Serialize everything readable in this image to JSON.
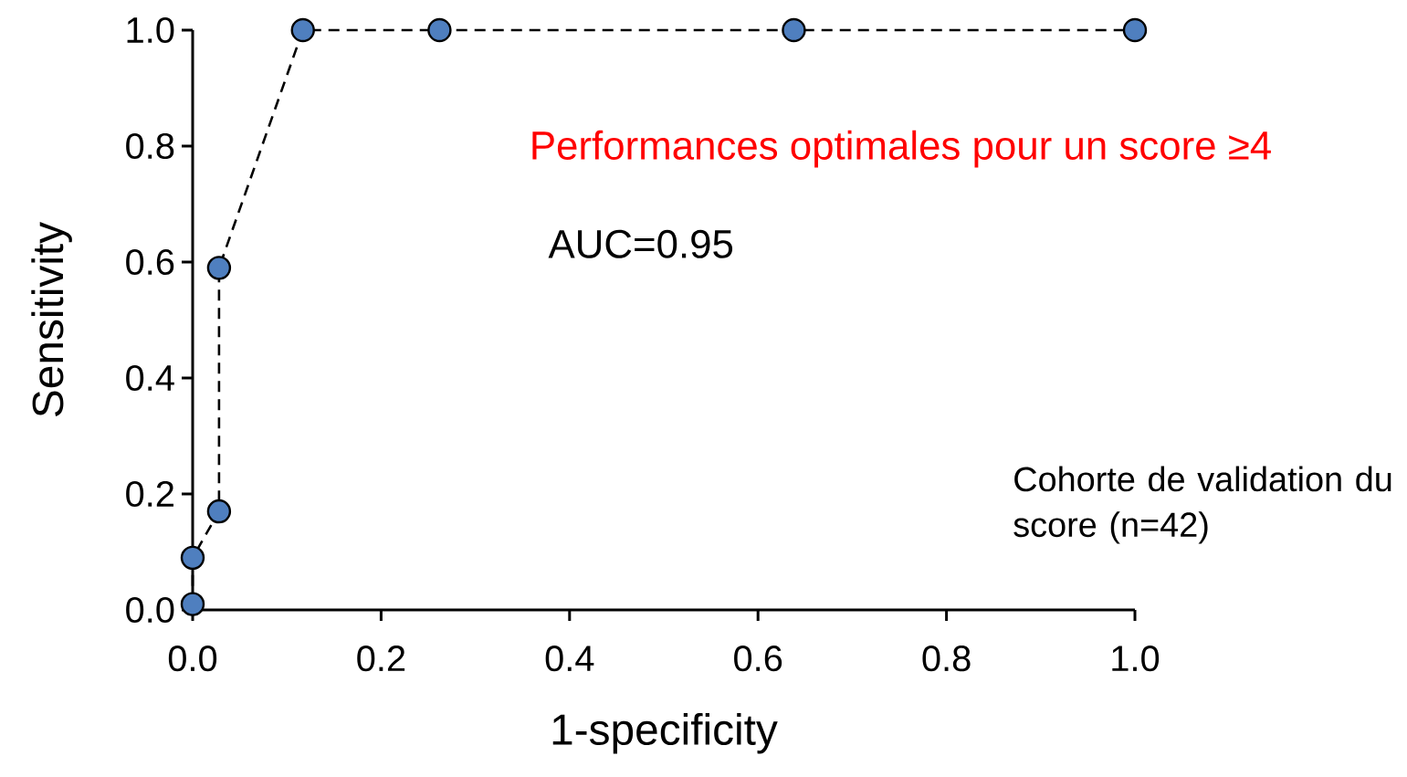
{
  "chart_data": {
    "type": "line",
    "xlabel": "1-specificity",
    "ylabel": "Sensitivity",
    "series": [
      {
        "color": "#4f7fbf",
        "x": [
          0.0,
          0.0,
          0.028,
          0.028,
          0.117,
          0.262,
          0.638,
          1.0
        ],
        "values": [
          0.01,
          0.09,
          0.17,
          0.59,
          1.0,
          1.0,
          1.0,
          1.0
        ]
      }
    ],
    "xlim": [
      0,
      1.0
    ],
    "ylim": [
      0,
      1.0
    ],
    "xticks": [
      {
        "value": 0,
        "label": "0.0"
      },
      0.2,
      0.4,
      0.6,
      0.8,
      {
        "value": 1,
        "label": "1.0"
      }
    ],
    "yticks": [
      {
        "value": 0,
        "label": "0.0"
      },
      0.2,
      0.4,
      0.6,
      0.8,
      {
        "value": 1,
        "label": "1.0"
      }
    ],
    "marker": "circle",
    "line_style": "dashed",
    "grid": false,
    "annotations": [
      "Performances optimales pour un score ≥4",
      "AUC=0.95",
      "Cohorte de validation du score (n=42)"
    ]
  }
}
